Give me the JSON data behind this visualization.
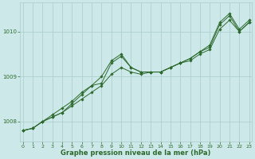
{
  "line1": {
    "x": [
      0,
      1,
      2,
      3,
      4,
      5,
      6,
      7,
      8,
      9,
      10,
      11,
      12,
      13,
      14,
      15,
      16,
      17,
      18,
      19,
      20,
      21,
      22,
      23
    ],
    "y": [
      1007.8,
      1007.85,
      1008.0,
      1008.1,
      1008.2,
      1008.4,
      1008.6,
      1008.8,
      1008.85,
      1009.3,
      1009.45,
      1009.2,
      1009.1,
      1009.1,
      1009.1,
      1009.2,
      1009.3,
      1009.4,
      1009.55,
      1009.65,
      1010.15,
      1010.35,
      1010.0,
      1010.2
    ]
  },
  "line2": {
    "x": [
      0,
      1,
      2,
      3,
      4,
      5,
      6,
      7,
      8,
      9,
      10,
      11,
      12,
      13,
      14,
      15,
      16,
      17,
      18,
      19,
      20,
      21,
      22,
      23
    ],
    "y": [
      1007.8,
      1007.85,
      1008.0,
      1008.15,
      1008.3,
      1008.45,
      1008.65,
      1008.8,
      1009.0,
      1009.35,
      1009.5,
      1009.2,
      1009.1,
      1009.1,
      1009.1,
      1009.2,
      1009.3,
      1009.4,
      1009.55,
      1009.7,
      1010.2,
      1010.4,
      1010.05,
      1010.25
    ]
  },
  "line3": {
    "x": [
      0,
      1,
      2,
      3,
      4,
      5,
      6,
      7,
      8,
      9,
      10,
      11,
      12,
      13,
      14,
      15,
      16,
      17,
      18,
      19,
      20,
      21,
      22,
      23
    ],
    "y": [
      1007.8,
      1007.85,
      1008.0,
      1008.1,
      1008.2,
      1008.35,
      1008.5,
      1008.65,
      1008.8,
      1009.05,
      1009.2,
      1009.1,
      1009.05,
      1009.1,
      1009.1,
      1009.2,
      1009.3,
      1009.35,
      1009.5,
      1009.6,
      1010.05,
      1010.25,
      1010.0,
      1010.2
    ]
  },
  "line_color": "#2d6a2d",
  "bg_color": "#cce8e8",
  "grid_color": "#aacccc",
  "xlabel": "Graphe pression niveau de la mer (hPa)",
  "xlabel_color": "#2d6a2d",
  "yticks": [
    1008,
    1009,
    1010
  ],
  "xticks": [
    0,
    1,
    2,
    3,
    4,
    5,
    6,
    7,
    8,
    9,
    10,
    11,
    12,
    13,
    14,
    15,
    16,
    17,
    18,
    19,
    20,
    21,
    22,
    23
  ],
  "ylim": [
    1007.55,
    1010.65
  ],
  "xlim": [
    -0.3,
    23.3
  ]
}
